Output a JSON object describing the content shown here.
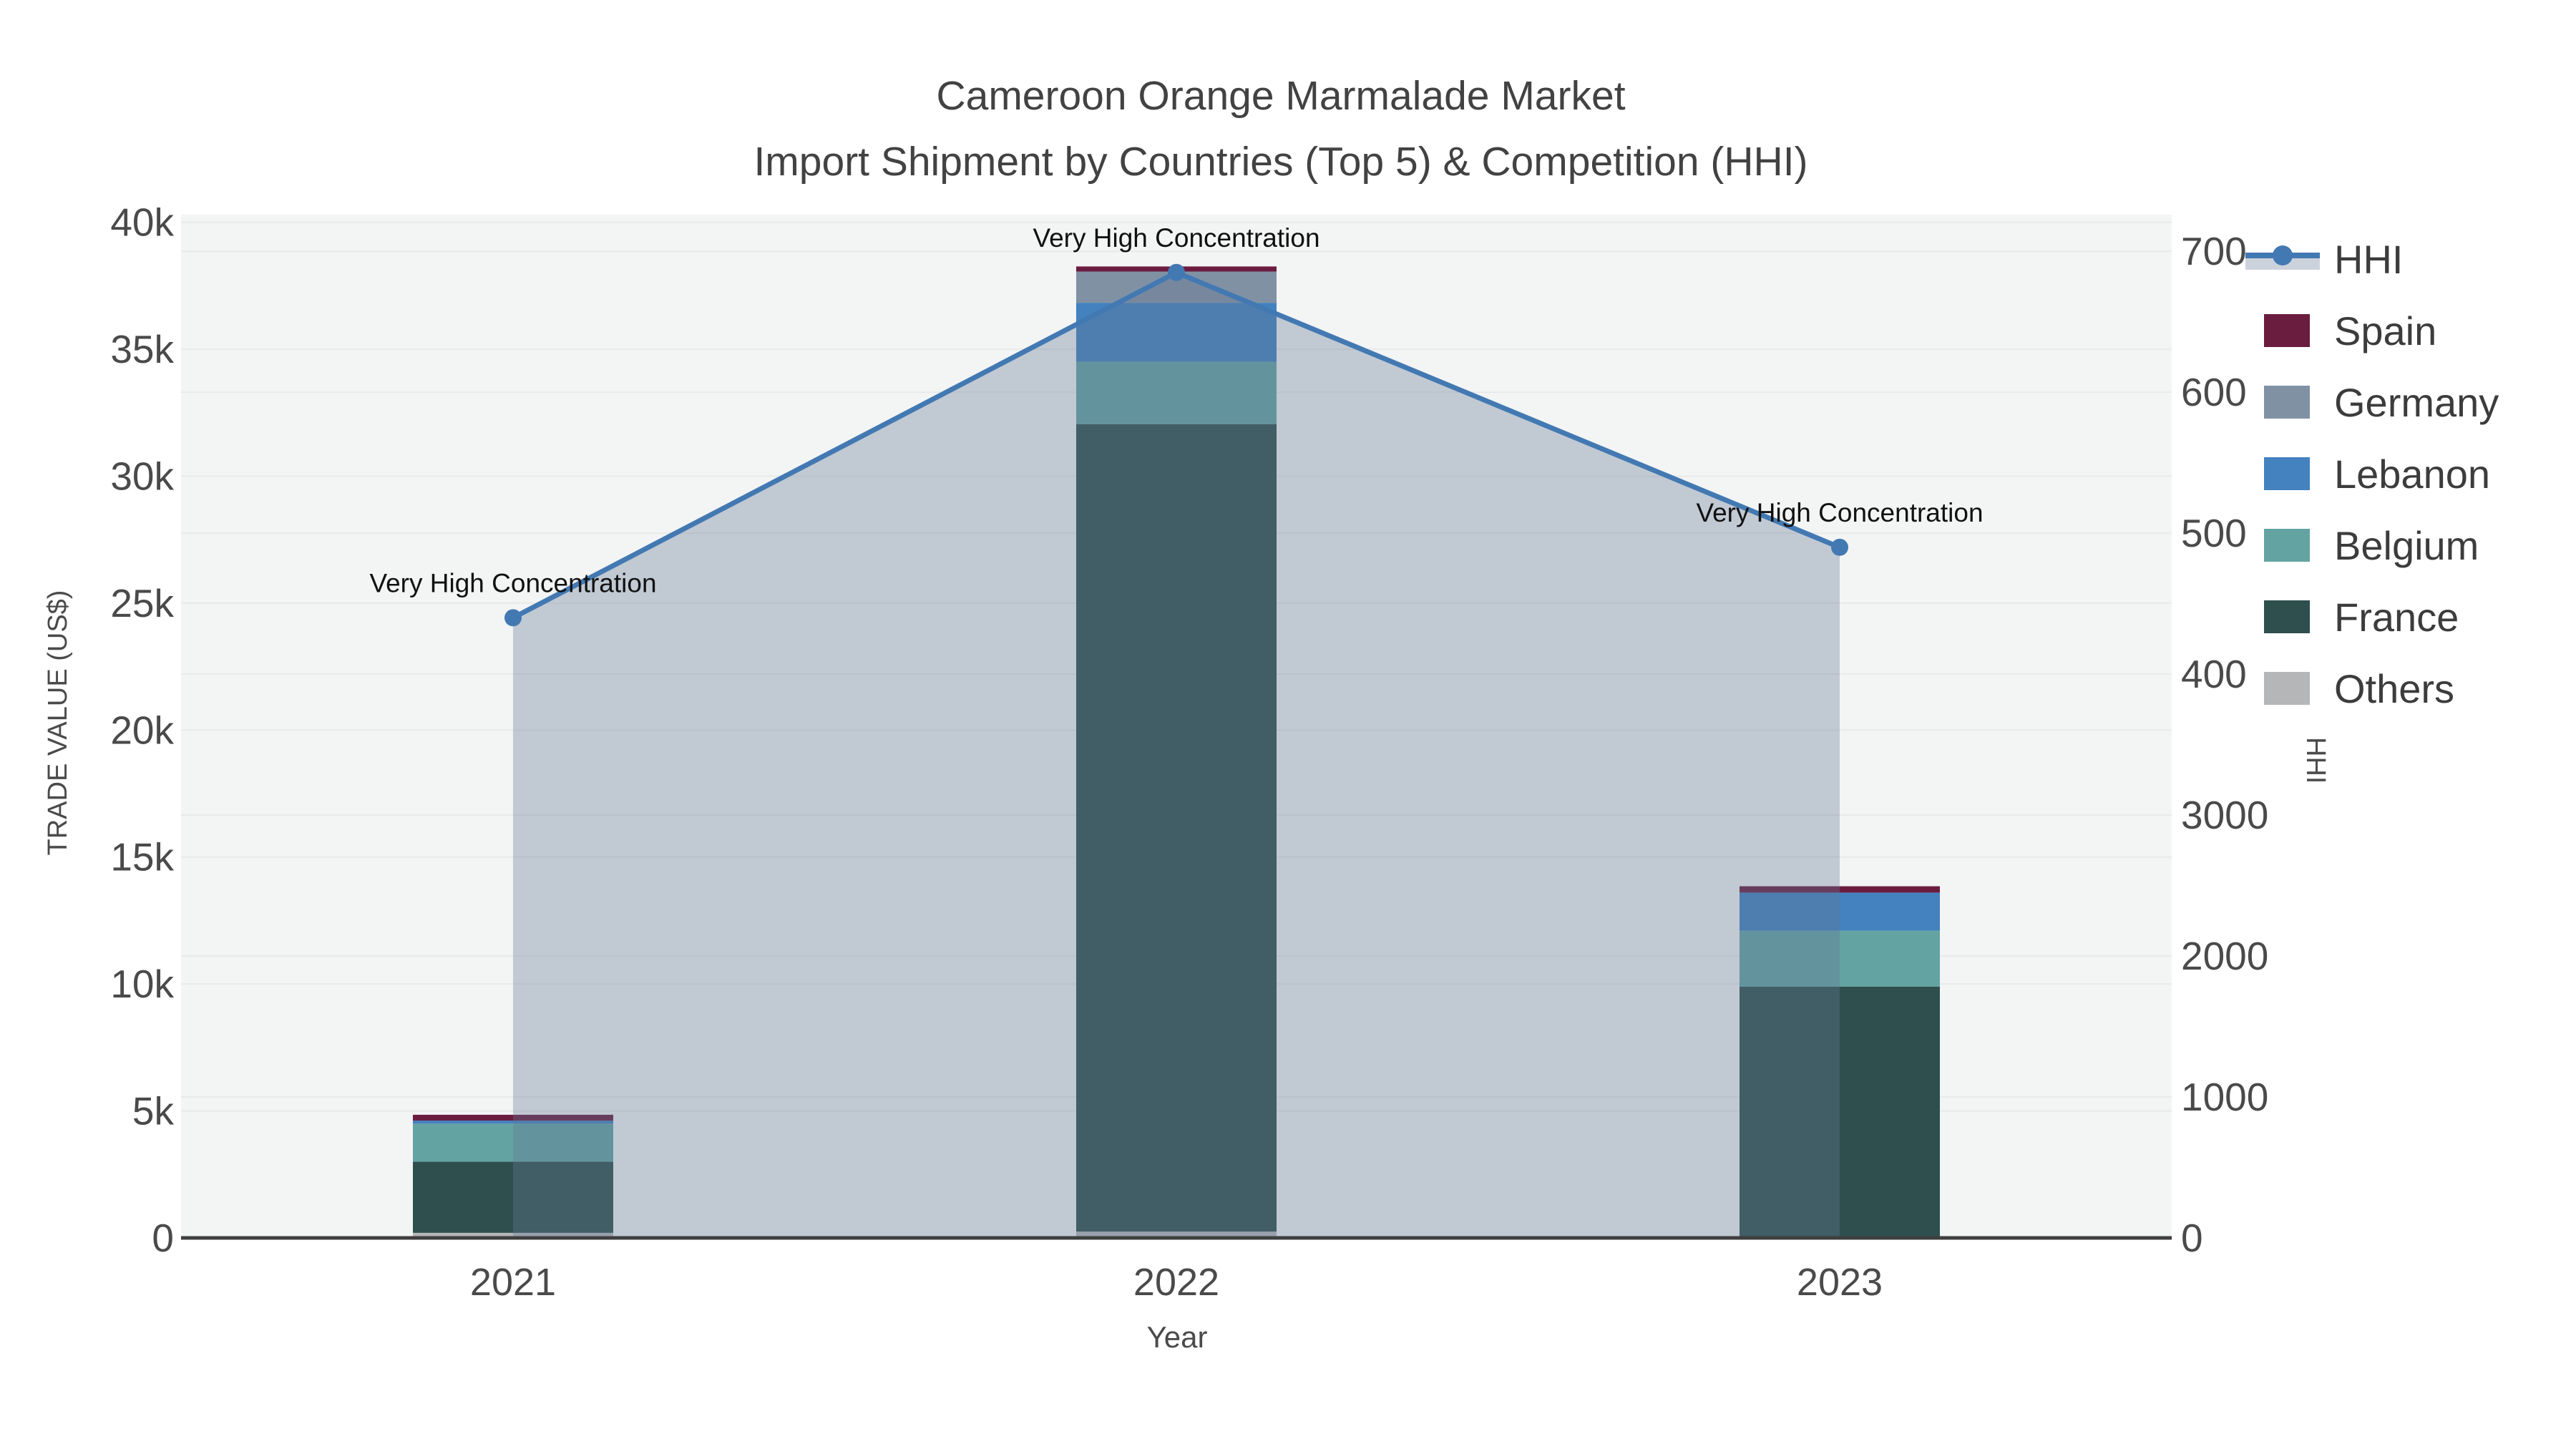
{
  "title": {
    "line1": "Cameroon Orange Marmalade Market",
    "line2": "Import Shipment by Countries (Top 5) & Competition (HHI)"
  },
  "axes": {
    "x": {
      "title": "Year",
      "categories": [
        "2021",
        "2022",
        "2023"
      ]
    },
    "left": {
      "title": "TRADE VALUE (US$)",
      "tick_labels": [
        "0",
        "5k",
        "10k",
        "15k",
        "20k",
        "25k",
        "30k",
        "35k",
        "40k"
      ],
      "tick_values": [
        0,
        5000,
        10000,
        15000,
        20000,
        25000,
        30000,
        35000,
        40000
      ]
    },
    "right": {
      "title": "HHI",
      "tick_labels": [
        "0",
        "1000",
        "2000",
        "3000",
        "4000",
        "5000",
        "6000",
        "7000"
      ],
      "tick_values": [
        0,
        1000,
        2000,
        3000,
        4000,
        5000,
        6000,
        7000
      ]
    }
  },
  "legend": {
    "items": [
      {
        "label": "HHI",
        "swatch": "line",
        "color": "#4379b2"
      },
      {
        "label": "Spain",
        "swatch": "box",
        "color": "#6b1d3f"
      },
      {
        "label": "Germany",
        "swatch": "box",
        "color": "#8191a4"
      },
      {
        "label": "Lebanon",
        "swatch": "box",
        "color": "#4381bf"
      },
      {
        "label": "Belgium",
        "swatch": "box",
        "color": "#63a3a2"
      },
      {
        "label": "France",
        "swatch": "box",
        "color": "#2e4f4d"
      },
      {
        "label": "Others",
        "swatch": "box",
        "color": "#b4b6b8"
      }
    ]
  },
  "annotations": [
    {
      "text": "Very High Concentration",
      "year": "2021"
    },
    {
      "text": "Very High Concentration",
      "year": "2022"
    },
    {
      "text": "Very High Concentration",
      "year": "2023"
    }
  ],
  "colors": {
    "hhi_line": "#4379b2",
    "hhi_fill": "rgba(99,120,150,0.35)",
    "plot_bg": "#f3f4f4",
    "gridline": "#e8eaea",
    "axis_line": "#3f3f3f",
    "tick_text": "#4a4a4a",
    "annotation_text": "#111111"
  },
  "chart_data": {
    "type": "bar",
    "subtype": "stacked bars + HHI line with area fill on secondary axis",
    "title": "Cameroon Orange Marmalade Market — Import Shipment by Countries (Top 5) & Competition (HHI)",
    "xlabel": "Year",
    "ylabel": "TRADE VALUE (US$)",
    "y2label": "HHI",
    "categories": [
      "2021",
      "2022",
      "2023"
    ],
    "stack_order_bottom_to_top": [
      "Others",
      "France",
      "Belgium",
      "Lebanon",
      "Germany",
      "Spain"
    ],
    "series": [
      {
        "name": "Others",
        "color": "#b4b6b8",
        "values": [
          200,
          250,
          0
        ]
      },
      {
        "name": "France",
        "color": "#2e4f4d",
        "values": [
          2800,
          31800,
          9900
        ]
      },
      {
        "name": "Belgium",
        "color": "#63a3a2",
        "values": [
          1500,
          2460,
          2200
        ]
      },
      {
        "name": "Lebanon",
        "color": "#4381bf",
        "values": [
          120,
          2320,
          1500
        ]
      },
      {
        "name": "Germany",
        "color": "#8191a4",
        "values": [
          0,
          1230,
          0
        ]
      },
      {
        "name": "Spain",
        "color": "#6b1d3f",
        "values": [
          230,
          200,
          250
        ]
      }
    ],
    "totals": [
      4850,
      38260,
      13850
    ],
    "hhi_series": {
      "name": "HHI",
      "values": [
        4400,
        6850,
        4900
      ]
    },
    "ylim": [
      0,
      40300
    ],
    "y2lim": [
      0,
      7260
    ],
    "grid": true,
    "legend_position": "right"
  }
}
